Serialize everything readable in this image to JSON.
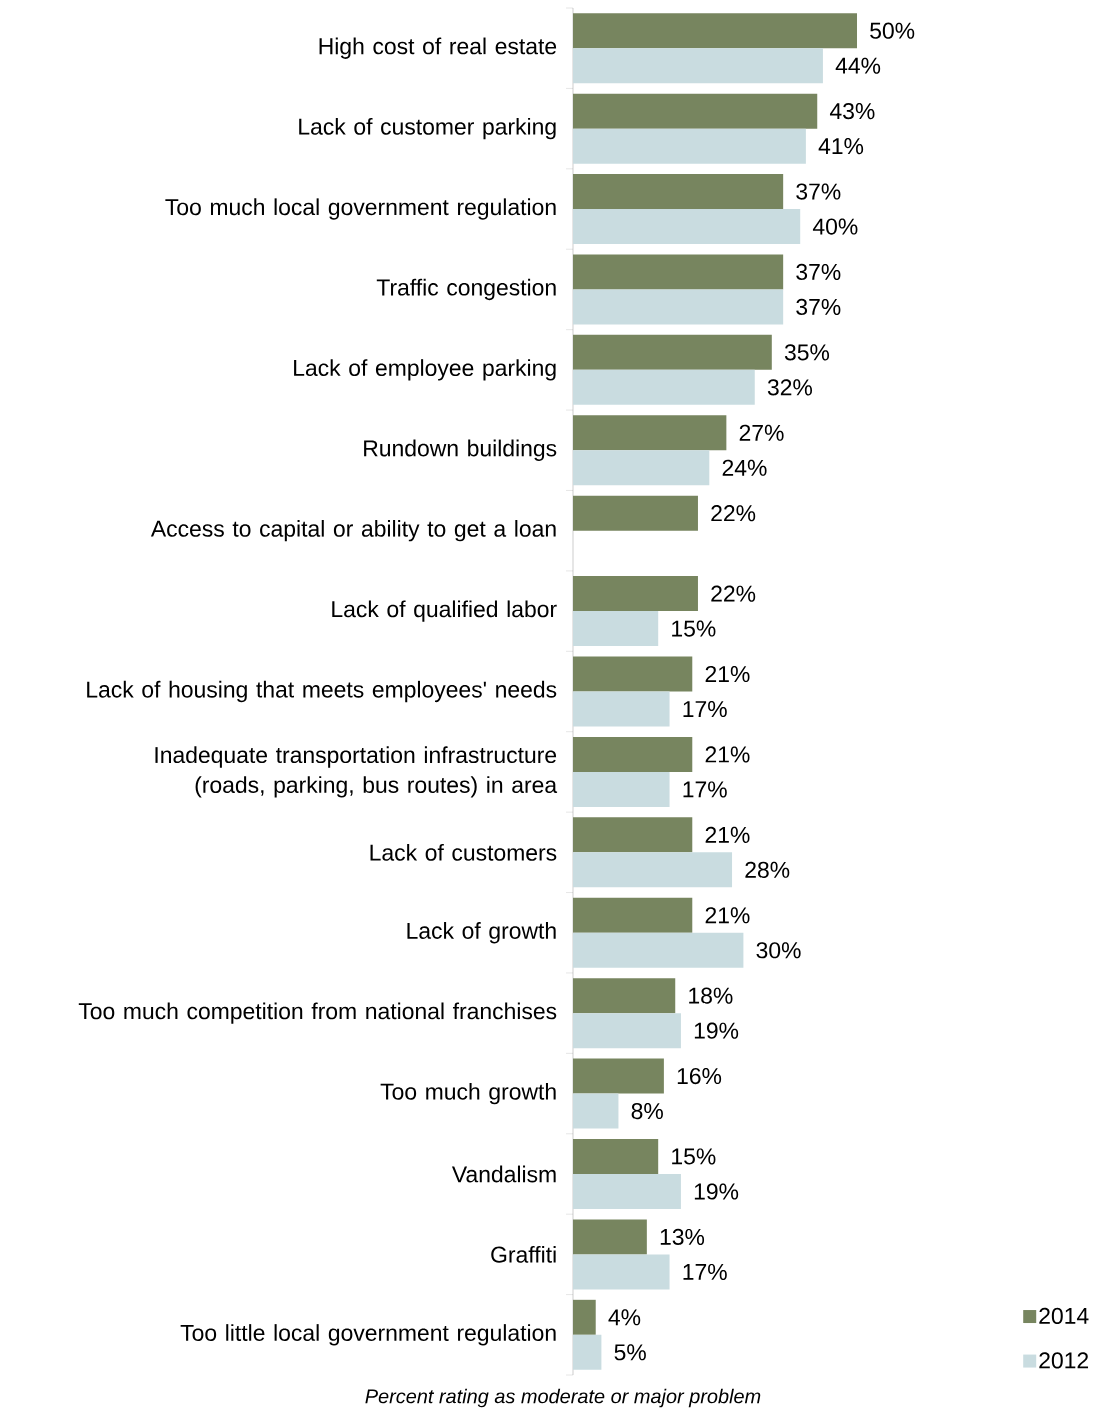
{
  "chart_data": {
    "type": "bar",
    "orientation": "horizontal",
    "xlabel": "Percent rating as moderate or major problem",
    "categories": [
      "High cost of real estate",
      "Lack of customer parking",
      "Too much local government regulation",
      "Traffic congestion",
      "Lack of employee parking",
      "Rundown buildings",
      "Access to capital or ability to get a loan",
      "Lack of qualified labor",
      "Lack of housing that meets employees' needs",
      "Inadequate transportation infrastructure (roads, parking, bus routes) in area",
      "Lack of customers",
      "Lack of growth",
      "Too much competition from national franchises",
      "Too much growth",
      "Vandalism",
      "Graffiti",
      "Too little local government regulation"
    ],
    "series": [
      {
        "name": "2014",
        "color": "#77855f",
        "values": [
          50,
          43,
          37,
          37,
          35,
          27,
          22,
          22,
          21,
          21,
          21,
          21,
          18,
          16,
          15,
          13,
          4
        ],
        "value_labels": [
          "50%",
          "43%",
          "37%",
          "37%",
          "35%",
          "27%",
          "22%",
          "22%",
          "21%",
          "21%",
          "21%",
          "21%",
          "18%",
          "16%",
          "15%",
          "13%",
          "4%"
        ]
      },
      {
        "name": "2012",
        "color": "#c9dce0",
        "values": [
          44,
          41,
          40,
          37,
          32,
          24,
          null,
          15,
          17,
          17,
          28,
          30,
          19,
          8,
          19,
          17,
          5
        ],
        "value_labels": [
          "44%",
          "41%",
          "40%",
          "37%",
          "32%",
          "24%",
          null,
          "15%",
          "17%",
          "17%",
          "28%",
          "30%",
          "19%",
          "8%",
          "19%",
          "17%",
          "5%"
        ]
      }
    ],
    "tick_labels": "y",
    "legend": "bottom right"
  }
}
